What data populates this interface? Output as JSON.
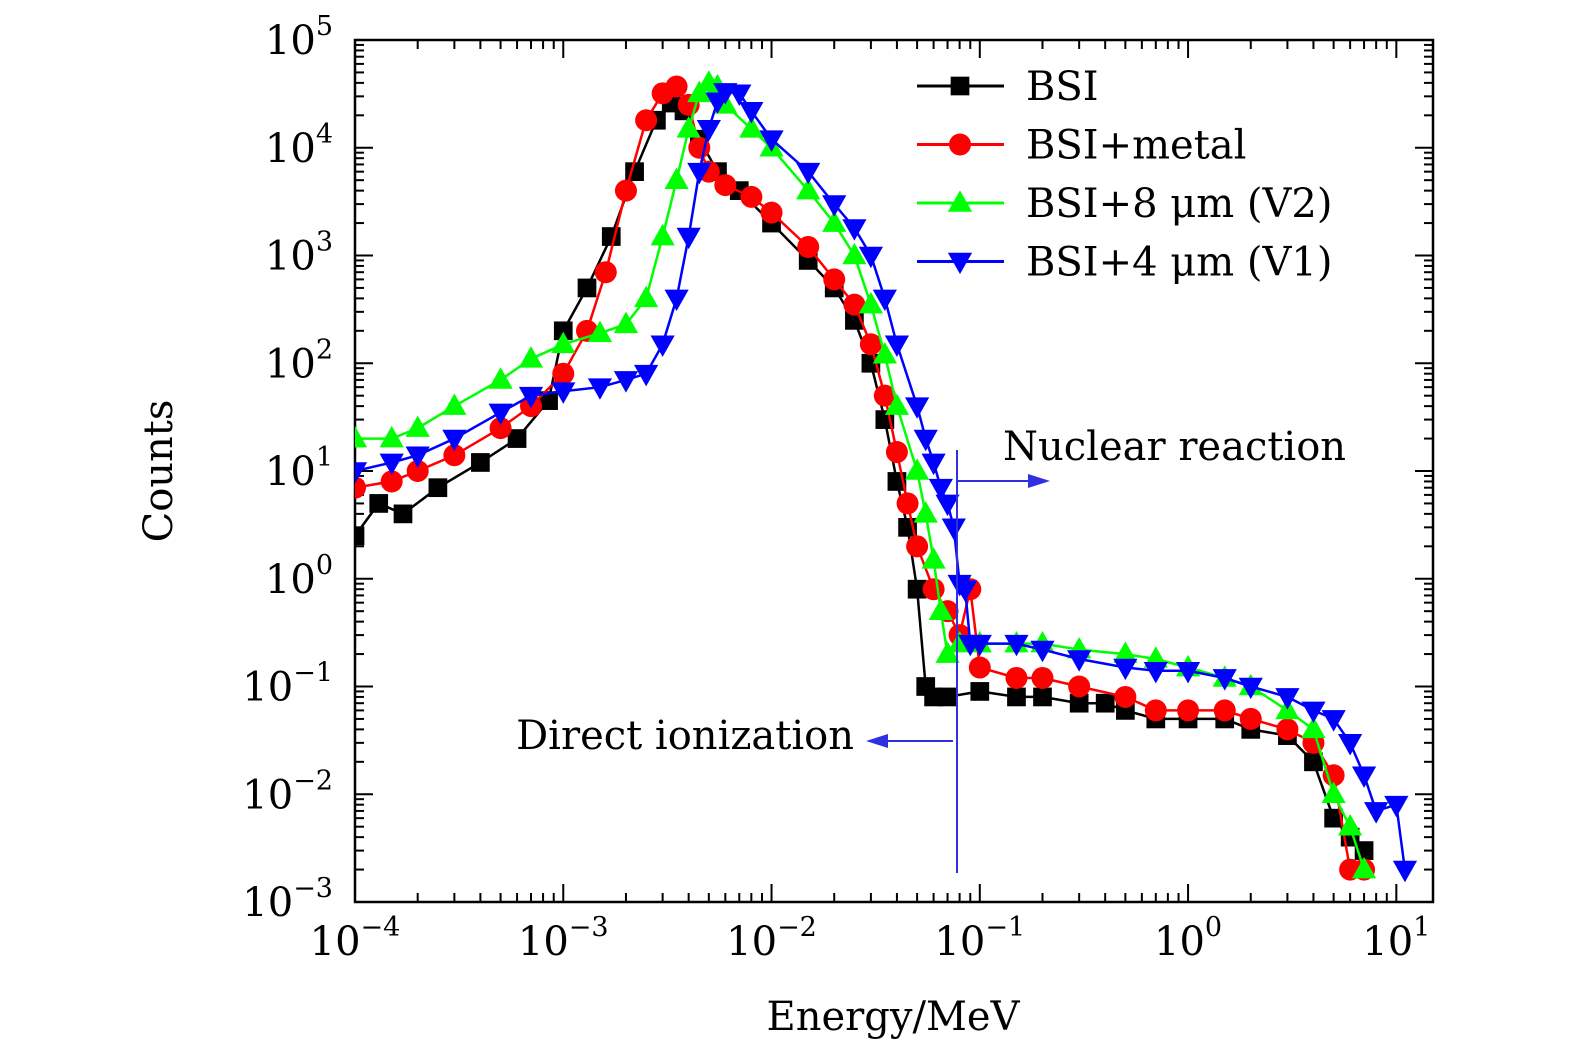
{
  "chart_data": {
    "type": "scatter",
    "xlabel": "Energy/MeV",
    "ylabel": "Counts",
    "x_scale": "log",
    "y_scale": "log",
    "xlim": [
      0.0001,
      15
    ],
    "ylim": [
      0.001,
      100000
    ],
    "x_ticks": [
      {
        "value": 0.0001,
        "base": "10",
        "exp": "−4"
      },
      {
        "value": 0.001,
        "base": "10",
        "exp": "−3"
      },
      {
        "value": 0.01,
        "base": "10",
        "exp": "−2"
      },
      {
        "value": 0.1,
        "base": "10",
        "exp": "−1"
      },
      {
        "value": 1,
        "base": "10",
        "exp": "0"
      },
      {
        "value": 10,
        "base": "10",
        "exp": "1"
      }
    ],
    "y_ticks": [
      {
        "value": 0.001,
        "base": "10",
        "exp": "−3"
      },
      {
        "value": 0.01,
        "base": "10",
        "exp": "−2"
      },
      {
        "value": 0.1,
        "base": "10",
        "exp": "−1"
      },
      {
        "value": 1,
        "base": "10",
        "exp": "0"
      },
      {
        "value": 10,
        "base": "10",
        "exp": "1"
      },
      {
        "value": 100,
        "base": "10",
        "exp": "2"
      },
      {
        "value": 1000,
        "base": "10",
        "exp": "3"
      },
      {
        "value": 10000,
        "base": "10",
        "exp": "4"
      },
      {
        "value": 100000,
        "base": "10",
        "exp": "5"
      }
    ],
    "grid": false,
    "legend_position": "top-right",
    "series": [
      {
        "name": "BSI",
        "color": "#000000",
        "marker": "square",
        "points": [
          [
            0.0001,
            2.5
          ],
          [
            0.00013,
            5
          ],
          [
            0.00017,
            4
          ],
          [
            0.00025,
            7
          ],
          [
            0.0004,
            12
          ],
          [
            0.0006,
            20
          ],
          [
            0.00085,
            45
          ],
          [
            0.001,
            200
          ],
          [
            0.0013,
            500
          ],
          [
            0.0017,
            1500
          ],
          [
            0.0022,
            6000
          ],
          [
            0.0028,
            18000
          ],
          [
            0.0033,
            26000
          ],
          [
            0.0038,
            22000
          ],
          [
            0.0045,
            12000
          ],
          [
            0.0055,
            6000
          ],
          [
            0.007,
            4000
          ],
          [
            0.01,
            2000
          ],
          [
            0.015,
            900
          ],
          [
            0.02,
            500
          ],
          [
            0.025,
            250
          ],
          [
            0.03,
            100
          ],
          [
            0.035,
            30
          ],
          [
            0.04,
            8
          ],
          [
            0.045,
            3
          ],
          [
            0.05,
            0.8
          ],
          [
            0.055,
            0.1
          ],
          [
            0.06,
            0.08
          ],
          [
            0.07,
            0.08
          ],
          [
            0.1,
            0.09
          ],
          [
            0.15,
            0.08
          ],
          [
            0.2,
            0.08
          ],
          [
            0.3,
            0.07
          ],
          [
            0.4,
            0.07
          ],
          [
            0.5,
            0.06
          ],
          [
            0.7,
            0.05
          ],
          [
            1,
            0.05
          ],
          [
            1.5,
            0.05
          ],
          [
            2,
            0.04
          ],
          [
            3,
            0.035
          ],
          [
            4,
            0.02
          ],
          [
            5,
            0.006
          ],
          [
            6,
            0.004
          ],
          [
            7,
            0.003
          ]
        ]
      },
      {
        "name": "BSI+metal",
        "color": "#ff0000",
        "marker": "circle",
        "points": [
          [
            0.0001,
            7
          ],
          [
            0.00015,
            8
          ],
          [
            0.0002,
            10
          ],
          [
            0.0003,
            14
          ],
          [
            0.0005,
            25
          ],
          [
            0.0007,
            40
          ],
          [
            0.001,
            80
          ],
          [
            0.0013,
            200
          ],
          [
            0.0016,
            700
          ],
          [
            0.002,
            4000
          ],
          [
            0.0025,
            18000
          ],
          [
            0.003,
            32000
          ],
          [
            0.0035,
            37000
          ],
          [
            0.004,
            25000
          ],
          [
            0.0045,
            10000
          ],
          [
            0.005,
            6000
          ],
          [
            0.006,
            4500
          ],
          [
            0.008,
            3500
          ],
          [
            0.01,
            2500
          ],
          [
            0.015,
            1200
          ],
          [
            0.02,
            600
          ],
          [
            0.025,
            350
          ],
          [
            0.03,
            150
          ],
          [
            0.035,
            50
          ],
          [
            0.04,
            15
          ],
          [
            0.045,
            5
          ],
          [
            0.05,
            2
          ],
          [
            0.06,
            0.8
          ],
          [
            0.07,
            0.5
          ],
          [
            0.08,
            0.3
          ],
          [
            0.09,
            0.8
          ],
          [
            0.1,
            0.15
          ],
          [
            0.15,
            0.12
          ],
          [
            0.2,
            0.12
          ],
          [
            0.3,
            0.1
          ],
          [
            0.5,
            0.08
          ],
          [
            0.7,
            0.06
          ],
          [
            1,
            0.06
          ],
          [
            1.5,
            0.06
          ],
          [
            2,
            0.05
          ],
          [
            3,
            0.04
          ],
          [
            4,
            0.03
          ],
          [
            5,
            0.015
          ],
          [
            6,
            0.002
          ],
          [
            7,
            0.002
          ]
        ]
      },
      {
        "name": "BSI+8 μm (V2)",
        "color": "#00ff00",
        "marker": "triangle-up",
        "points": [
          [
            0.0001,
            20
          ],
          [
            0.00015,
            20
          ],
          [
            0.0002,
            25
          ],
          [
            0.0003,
            40
          ],
          [
            0.0005,
            70
          ],
          [
            0.0007,
            110
          ],
          [
            0.001,
            150
          ],
          [
            0.0015,
            190
          ],
          [
            0.002,
            230
          ],
          [
            0.0025,
            400
          ],
          [
            0.003,
            1500
          ],
          [
            0.0035,
            5000
          ],
          [
            0.004,
            15000
          ],
          [
            0.0045,
            32000
          ],
          [
            0.005,
            40000
          ],
          [
            0.0055,
            37000
          ],
          [
            0.006,
            25000
          ],
          [
            0.008,
            15000
          ],
          [
            0.01,
            10000
          ],
          [
            0.015,
            4000
          ],
          [
            0.02,
            2000
          ],
          [
            0.025,
            1000
          ],
          [
            0.03,
            350
          ],
          [
            0.035,
            120
          ],
          [
            0.04,
            40
          ],
          [
            0.05,
            10
          ],
          [
            0.055,
            4
          ],
          [
            0.06,
            1.5
          ],
          [
            0.065,
            0.5
          ],
          [
            0.07,
            0.2
          ],
          [
            0.08,
            0.25
          ],
          [
            0.1,
            0.25
          ],
          [
            0.15,
            0.25
          ],
          [
            0.2,
            0.25
          ],
          [
            0.3,
            0.22
          ],
          [
            0.5,
            0.2
          ],
          [
            0.7,
            0.18
          ],
          [
            1,
            0.15
          ],
          [
            1.5,
            0.12
          ],
          [
            2,
            0.1
          ],
          [
            3,
            0.06
          ],
          [
            4,
            0.04
          ],
          [
            5,
            0.01
          ],
          [
            6,
            0.005
          ],
          [
            7,
            0.002
          ]
        ]
      },
      {
        "name": "BSI+4 μm (V1)",
        "color": "#0000ff",
        "marker": "triangle-down",
        "points": [
          [
            0.0001,
            10
          ],
          [
            0.00015,
            12
          ],
          [
            0.0002,
            14
          ],
          [
            0.0003,
            20
          ],
          [
            0.0005,
            35
          ],
          [
            0.0007,
            50
          ],
          [
            0.001,
            55
          ],
          [
            0.0015,
            60
          ],
          [
            0.002,
            70
          ],
          [
            0.0025,
            80
          ],
          [
            0.003,
            150
          ],
          [
            0.0035,
            400
          ],
          [
            0.004,
            1500
          ],
          [
            0.0045,
            6000
          ],
          [
            0.005,
            15000
          ],
          [
            0.0055,
            27000
          ],
          [
            0.006,
            33000
          ],
          [
            0.007,
            32000
          ],
          [
            0.008,
            22000
          ],
          [
            0.01,
            12000
          ],
          [
            0.015,
            6000
          ],
          [
            0.02,
            3000
          ],
          [
            0.025,
            1800
          ],
          [
            0.03,
            1000
          ],
          [
            0.035,
            400
          ],
          [
            0.04,
            150
          ],
          [
            0.05,
            40
          ],
          [
            0.055,
            20
          ],
          [
            0.06,
            12
          ],
          [
            0.065,
            7
          ],
          [
            0.07,
            5
          ],
          [
            0.075,
            3
          ],
          [
            0.08,
            0.9
          ],
          [
            0.085,
            0.8
          ],
          [
            0.09,
            0.25
          ],
          [
            0.1,
            0.25
          ],
          [
            0.15,
            0.25
          ],
          [
            0.2,
            0.22
          ],
          [
            0.3,
            0.18
          ],
          [
            0.5,
            0.15
          ],
          [
            0.7,
            0.14
          ],
          [
            1,
            0.14
          ],
          [
            1.5,
            0.12
          ],
          [
            2,
            0.1
          ],
          [
            3,
            0.08
          ],
          [
            4,
            0.06
          ],
          [
            5,
            0.05
          ],
          [
            6,
            0.03
          ],
          [
            7,
            0.015
          ],
          [
            8,
            0.007
          ],
          [
            10,
            0.008
          ],
          [
            11,
            0.002
          ]
        ]
      }
    ],
    "annotations": [
      {
        "text": "Nuclear reaction",
        "direction": "right"
      },
      {
        "text": "Direct ionization",
        "direction": "left"
      }
    ]
  }
}
